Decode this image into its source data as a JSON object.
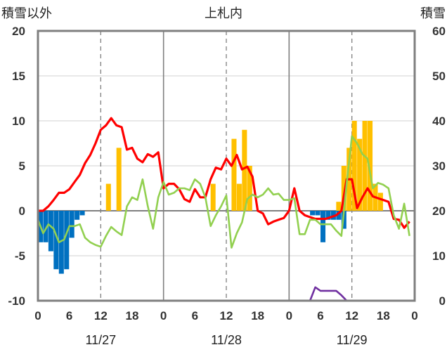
{
  "chart_data": {
    "type": "bar",
    "title": "上札内",
    "left_axis_label": "積雪以外",
    "right_axis_label": "積雪",
    "left_ylim": [
      -10,
      20
    ],
    "left_yticks": [
      "20",
      "15",
      "10",
      "5",
      "0",
      "-5",
      "-10"
    ],
    "right_ylim": [
      0,
      60
    ],
    "right_yticks": [
      "60",
      "50",
      "40",
      "30",
      "20",
      "10",
      "0"
    ],
    "xlim": [
      0,
      72
    ],
    "xticks": [
      {
        "h": 0,
        "label": "0"
      },
      {
        "h": 6,
        "label": "6"
      },
      {
        "h": 12,
        "label": "12"
      },
      {
        "h": 18,
        "label": "18"
      },
      {
        "h": 24,
        "label": "0"
      },
      {
        "h": 30,
        "label": "6"
      },
      {
        "h": 36,
        "label": "12"
      },
      {
        "h": 42,
        "label": "18"
      },
      {
        "h": 48,
        "label": "0"
      },
      {
        "h": 54,
        "label": "6"
      },
      {
        "h": 60,
        "label": "12"
      },
      {
        "h": 66,
        "label": "18"
      },
      {
        "h": 72,
        "label": "0"
      }
    ],
    "day_labels": [
      {
        "h": 12,
        "label": "11/27"
      },
      {
        "h": 36,
        "label": "11/28"
      },
      {
        "h": 60,
        "label": "11/29"
      }
    ],
    "day_separators": [
      24,
      48
    ],
    "noon_lines": [
      12,
      36,
      60
    ],
    "colors": {
      "red": "#ff0000",
      "green": "#92d050",
      "blue": "#0070c0",
      "yellow": "#ffc000",
      "purple": "#7030a0",
      "frame": "#7f7f7f"
    },
    "series": [
      {
        "kind": "bar",
        "color": "#0070c0",
        "x": [
          0,
          1,
          2,
          3,
          4,
          5,
          6,
          7,
          8,
          52,
          53,
          54,
          55,
          56,
          57,
          58
        ],
        "values": [
          -3.5,
          -3.5,
          -4.5,
          -6.5,
          -7,
          -6.5,
          -3,
          -1,
          -0.5,
          -0.5,
          -0.5,
          -3.5,
          -1,
          -1,
          -1,
          -2
        ]
      },
      {
        "kind": "bar",
        "color": "#ffc000",
        "x": [
          13,
          15,
          33,
          37,
          38,
          39,
          40,
          57,
          58,
          59,
          60,
          61,
          62,
          63,
          64,
          65
        ],
        "values": [
          3,
          7,
          3,
          8,
          3,
          9,
          5,
          1,
          5,
          7,
          10,
          8,
          10,
          10,
          3,
          2
        ]
      },
      {
        "kind": "line",
        "color": "#ff0000",
        "x": [
          0,
          1,
          2,
          3,
          4,
          5,
          6,
          7,
          8,
          9,
          10,
          11,
          12,
          13,
          14,
          15,
          16,
          17,
          18,
          19,
          20,
          21,
          22,
          23,
          24,
          25,
          26,
          27,
          28,
          29,
          30,
          31,
          32,
          33,
          34,
          35,
          36,
          37,
          38,
          39,
          40,
          41,
          42,
          43,
          44,
          45,
          46,
          47,
          48,
          49,
          50,
          51,
          52,
          53,
          54,
          55,
          56,
          57,
          58,
          59,
          60,
          61,
          62,
          63,
          64,
          65,
          66,
          67,
          68,
          69,
          70,
          71
        ],
        "values": [
          0,
          0,
          0.5,
          1.2,
          2,
          2,
          2.4,
          3.2,
          4,
          5.3,
          6.2,
          7.5,
          9,
          9.5,
          10.3,
          9.5,
          9.3,
          6.8,
          7,
          5.8,
          5.4,
          6.3,
          6,
          6.5,
          2.5,
          3,
          3,
          2.4,
          1.3,
          1,
          2.4,
          1.5,
          1.5,
          3.5,
          4.8,
          4.6,
          5.8,
          5,
          6.2,
          4.6,
          4.9,
          3.8,
          0,
          -0.3,
          -1.5,
          -1.2,
          -1,
          -0.8,
          0,
          2.5,
          0,
          -0.5,
          -0.7,
          -0.9,
          -0.9,
          -0.9,
          -0.7,
          -0.5,
          0,
          3.5,
          3.5,
          0.3,
          1.5,
          2.5,
          1.6,
          1.4,
          1.2,
          1,
          -0.9,
          -1,
          -1.9,
          -1.2
        ]
      },
      {
        "kind": "line",
        "color": "#92d050",
        "x": [
          0,
          1,
          2,
          3,
          4,
          5,
          6,
          7,
          8,
          9,
          10,
          11,
          12,
          13,
          14,
          15,
          16,
          17,
          18,
          19,
          20,
          21,
          22,
          23,
          24,
          25,
          26,
          27,
          28,
          29,
          30,
          31,
          32,
          33,
          34,
          35,
          36,
          37,
          38,
          39,
          40,
          41,
          42,
          43,
          44,
          45,
          46,
          47,
          48,
          49,
          50,
          51,
          52,
          53,
          54,
          55,
          56,
          57,
          58,
          59,
          60,
          61,
          62,
          63,
          64,
          65,
          66,
          67,
          68,
          69,
          70,
          71
        ],
        "values": [
          -1,
          -2.5,
          -1.5,
          -2,
          -3.5,
          -3.2,
          -1.7,
          -1.7,
          -1.5,
          -3,
          -3.5,
          -3.8,
          -4,
          -2.8,
          -1.8,
          -2.3,
          -2.7,
          0.5,
          1.5,
          1.2,
          3.5,
          0.5,
          -2,
          1.5,
          3.2,
          1.8,
          2,
          2.5,
          2.5,
          2.3,
          3.5,
          3,
          1.5,
          -1.7,
          -0.5,
          0.5,
          1.7,
          -4.1,
          -2.5,
          -1.3,
          1.3,
          1.8,
          1.5,
          1.8,
          2.5,
          1.8,
          1.9,
          1.2,
          1.2,
          1.4,
          -2.6,
          -2.6,
          -1,
          -1,
          -1.5,
          -1.5,
          -1.5,
          -2.2,
          -2.8,
          3,
          8.3,
          7.5,
          6.3,
          5.8,
          2.5,
          3.1,
          2.9,
          2.5,
          -0.5,
          -2,
          0.8,
          -2.8
        ]
      },
      {
        "kind": "line",
        "axis": "right",
        "color": "#7030a0",
        "x": [
          0,
          52,
          53,
          54,
          55,
          56,
          57,
          58,
          59,
          72
        ],
        "values": [
          0,
          0,
          3,
          2.2,
          2.2,
          2.2,
          2.2,
          1.2,
          0,
          0
        ]
      }
    ]
  }
}
